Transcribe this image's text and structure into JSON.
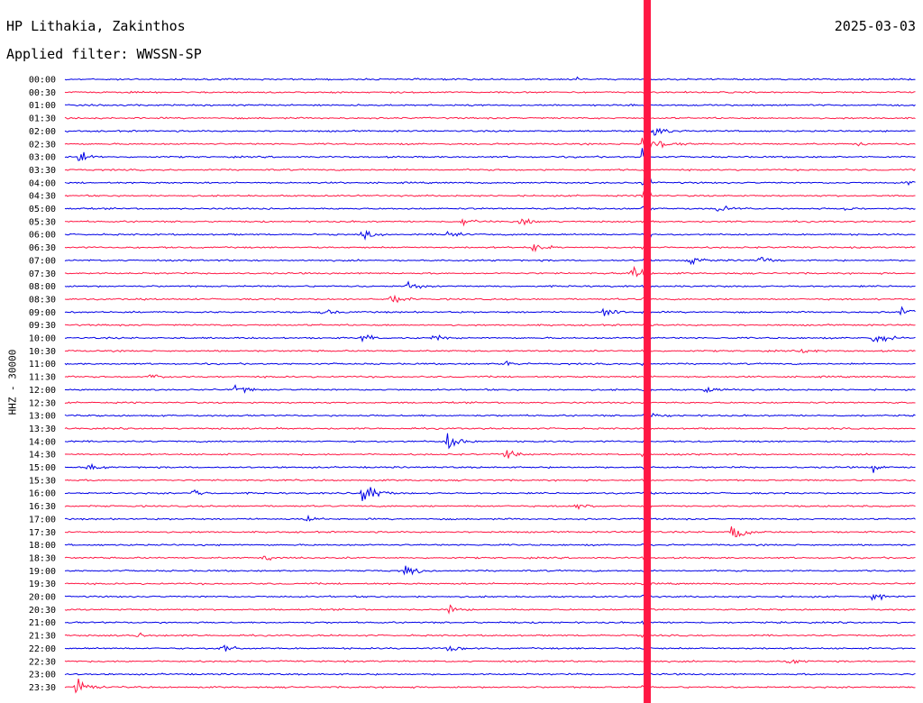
{
  "header": {
    "station": "HP Lithakia, Zakinthos",
    "date": "2025-03-03",
    "filter": "Applied filter: WWSSN-SP"
  },
  "colors": {
    "even_rows": "#0000e6",
    "odd_rows": "#ff1744",
    "text": "#000000"
  },
  "chart_data": {
    "type": "line",
    "title": "HP Lithakia, Zakinthos",
    "ylabel": "HHZ - 30000",
    "xlabel": "",
    "y_categories": [
      "00:00",
      "00:30",
      "01:00",
      "01:30",
      "02:00",
      "02:30",
      "03:00",
      "03:30",
      "04:00",
      "04:30",
      "05:00",
      "05:30",
      "06:00",
      "06:30",
      "07:00",
      "07:30",
      "08:00",
      "08:30",
      "09:00",
      "09:30",
      "10:00",
      "10:30",
      "11:00",
      "11:30",
      "12:00",
      "12:30",
      "13:00",
      "13:30",
      "14:00",
      "14:30",
      "15:00",
      "15:30",
      "16:00",
      "16:30",
      "17:00",
      "17:30",
      "18:00",
      "18:30",
      "19:00",
      "19:30",
      "20:00",
      "20:30",
      "21:00",
      "21:30",
      "22:00",
      "22:30",
      "23:00",
      "23:30"
    ],
    "row_span_minutes": 30,
    "channel": "HHZ",
    "scale": 30000,
    "events": [
      {
        "row": "00:00",
        "minute": 18,
        "amp": 0.6
      },
      {
        "row": "02:30",
        "minute": 20.5,
        "amp": 28,
        "main": true
      },
      {
        "row": "02:30",
        "minute": 28,
        "amp": 0.5
      },
      {
        "row": "03:00",
        "minute": 0.5,
        "amp": 1.5
      },
      {
        "row": "04:00",
        "minute": 29.7,
        "amp": 0.7
      },
      {
        "row": "05:00",
        "minute": 23,
        "amp": 0.9
      },
      {
        "row": "05:00",
        "minute": 27.5,
        "amp": 0.8
      },
      {
        "row": "05:30",
        "minute": 14,
        "amp": 1
      },
      {
        "row": "05:30",
        "minute": 16,
        "amp": 1
      },
      {
        "row": "06:00",
        "minute": 10.5,
        "amp": 1
      },
      {
        "row": "06:00",
        "minute": 13.5,
        "amp": 1
      },
      {
        "row": "06:30",
        "minute": 16.5,
        "amp": 1.2
      },
      {
        "row": "07:00",
        "minute": 22,
        "amp": 1.5
      },
      {
        "row": "07:00",
        "minute": 24.5,
        "amp": 1
      },
      {
        "row": "07:30",
        "minute": 20,
        "amp": 1.2
      },
      {
        "row": "08:00",
        "minute": 12,
        "amp": 1.2
      },
      {
        "row": "08:30",
        "minute": 11.5,
        "amp": 1.5
      },
      {
        "row": "09:00",
        "minute": 9,
        "amp": 1.2
      },
      {
        "row": "09:00",
        "minute": 19,
        "amp": 1.5
      },
      {
        "row": "09:00",
        "minute": 29.5,
        "amp": 1.2
      },
      {
        "row": "10:00",
        "minute": 10.5,
        "amp": 1.2
      },
      {
        "row": "10:00",
        "minute": 13,
        "amp": 1
      },
      {
        "row": "10:00",
        "minute": 28.5,
        "amp": 2
      },
      {
        "row": "10:30",
        "minute": 26,
        "amp": 1
      },
      {
        "row": "11:00",
        "minute": 15.5,
        "amp": 1.2
      },
      {
        "row": "11:30",
        "minute": 3,
        "amp": 1
      },
      {
        "row": "12:00",
        "minute": 6,
        "amp": 1.2
      },
      {
        "row": "12:00",
        "minute": 22.5,
        "amp": 1
      },
      {
        "row": "13:00",
        "minute": 20.5,
        "amp": 1
      },
      {
        "row": "14:00",
        "minute": 13.5,
        "amp": 2.5
      },
      {
        "row": "14:30",
        "minute": 15.5,
        "amp": 1.5
      },
      {
        "row": "15:00",
        "minute": 0.8,
        "amp": 1.2
      },
      {
        "row": "15:00",
        "minute": 28.5,
        "amp": 1
      },
      {
        "row": "16:00",
        "minute": 10.5,
        "amp": 3
      },
      {
        "row": "16:00",
        "minute": 4.5,
        "amp": 1.2
      },
      {
        "row": "16:30",
        "minute": 18,
        "amp": 1.2
      },
      {
        "row": "17:00",
        "minute": 8.5,
        "amp": 1.2
      },
      {
        "row": "17:30",
        "minute": 23.5,
        "amp": 4
      },
      {
        "row": "18:30",
        "minute": 7,
        "amp": 1
      },
      {
        "row": "19:00",
        "minute": 12,
        "amp": 1.2
      },
      {
        "row": "20:00",
        "minute": 28.5,
        "amp": 1
      },
      {
        "row": "20:30",
        "minute": 13.5,
        "amp": 1.2
      },
      {
        "row": "21:30",
        "minute": 2.5,
        "amp": 0.8
      },
      {
        "row": "22:00",
        "minute": 5.5,
        "amp": 1.5
      },
      {
        "row": "22:00",
        "minute": 13.5,
        "amp": 1.2
      },
      {
        "row": "22:30",
        "minute": 25.5,
        "amp": 1
      },
      {
        "row": "23:30",
        "minute": 0.4,
        "amp": 2
      }
    ]
  }
}
